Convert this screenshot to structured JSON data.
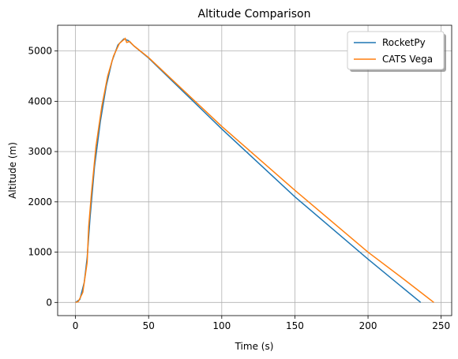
{
  "chart_data": {
    "type": "line",
    "title": "Altitude Comparison",
    "xlabel": "Time (s)",
    "ylabel": "Altitude (m)",
    "xlim": [
      -12.2,
      257.2
    ],
    "ylim": [
      -262,
      5512
    ],
    "xticks": [
      0,
      50,
      100,
      150,
      200,
      250
    ],
    "yticks": [
      0,
      1000,
      2000,
      3000,
      4000,
      5000
    ],
    "grid": true,
    "legend": "upper right",
    "series": [
      {
        "name": "RocketPy",
        "color": "#1f77b4",
        "x": [
          0,
          3,
          6,
          8,
          10,
          13,
          17,
          21,
          25,
          29,
          33,
          36,
          40,
          50,
          100,
          150,
          200,
          236
        ],
        "values": [
          0,
          60,
          400,
          900,
          1700,
          2700,
          3600,
          4300,
          4800,
          5120,
          5240,
          5210,
          5100,
          4860,
          3450,
          2100,
          860,
          0
        ]
      },
      {
        "name": "CATS Vega",
        "color": "#ff7f0e",
        "x": [
          0,
          2,
          5,
          8,
          9,
          11,
          14,
          18,
          22,
          26,
          30,
          34,
          35,
          37,
          40,
          50,
          100,
          150,
          200,
          225,
          245
        ],
        "values": [
          0,
          20,
          200,
          800,
          1500,
          2200,
          3100,
          3900,
          4500,
          4900,
          5150,
          5250,
          5170,
          5190,
          5100,
          4870,
          3500,
          2230,
          1000,
          450,
          0
        ]
      }
    ]
  }
}
